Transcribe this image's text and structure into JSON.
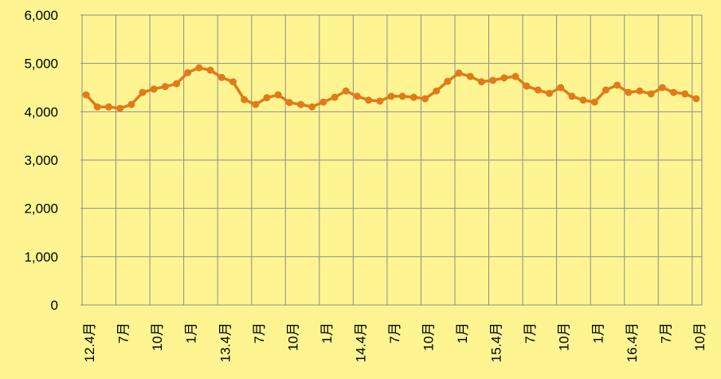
{
  "chart_data": {
    "type": "line",
    "categories": [
      "12.4月",
      null,
      null,
      "7月",
      null,
      null,
      "10月",
      null,
      null,
      "1月",
      null,
      null,
      "13.4月",
      null,
      null,
      "7月",
      null,
      null,
      "10月",
      null,
      null,
      "1月",
      null,
      null,
      "14.4月",
      null,
      null,
      "7月",
      null,
      null,
      "10月",
      null,
      null,
      "1月",
      null,
      null,
      "15.4月",
      null,
      null,
      "7月",
      null,
      null,
      "10月",
      null,
      null,
      "1月",
      null,
      null,
      "16.4月",
      null,
      null,
      "7月",
      null,
      null,
      "10月"
    ],
    "series": [
      {
        "color": "#e07b18",
        "values": [
          4350,
          4100,
          4100,
          4070,
          4150,
          4400,
          4470,
          4520,
          4580,
          4810,
          4910,
          4860,
          4710,
          4620,
          4250,
          4150,
          4290,
          4350,
          4190,
          4150,
          4100,
          4200,
          4300,
          4430,
          4320,
          4240,
          4220,
          4320,
          4320,
          4300,
          4270,
          4430,
          4630,
          4800,
          4730,
          4620,
          4650,
          4700,
          4730,
          4530,
          4450,
          4380,
          4500,
          4320,
          4240,
          4200,
          4450,
          4550,
          4400,
          4430,
          4370,
          4500,
          4400,
          4370,
          4270
        ]
      }
    ],
    "ylim": [
      0,
      6000
    ],
    "yticks": [
      0,
      {
        "value": 1000,
        "label": "1,000"
      },
      {
        "value": 2000,
        "label": "2,000"
      },
      {
        "value": 3000,
        "label": "3,000"
      },
      {
        "value": 4000,
        "label": "4,000"
      },
      {
        "value": 5000,
        "label": "5,000"
      },
      {
        "value": 6000,
        "label": "6,000"
      }
    ],
    "grid": true
  }
}
